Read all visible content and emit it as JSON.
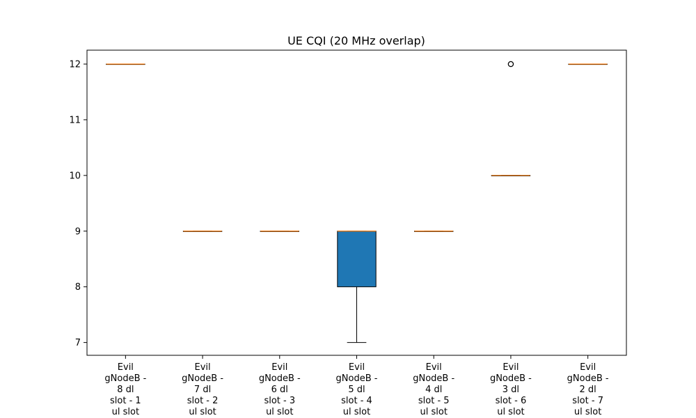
{
  "chart_data": {
    "type": "box",
    "title": "UE CQI (20 MHz overlap)",
    "xlabel": "",
    "ylabel": "",
    "ylim": [
      6.77,
      12.25
    ],
    "yticks": [
      7,
      8,
      9,
      10,
      11,
      12
    ],
    "grid": false,
    "box_color": "#1f77b4",
    "median_color": "#ff7f0e",
    "categories": [
      [
        "Evil",
        "gNodeB -",
        "8 dl",
        "slot - 1",
        "ul slot"
      ],
      [
        "Evil",
        "gNodeB -",
        "7 dl",
        "slot - 2",
        "ul slot"
      ],
      [
        "Evil",
        "gNodeB -",
        "6 dl",
        "slot - 3",
        "ul slot"
      ],
      [
        "Evil",
        "gNodeB -",
        "5 dl",
        "slot - 4",
        "ul slot"
      ],
      [
        "Evil",
        "gNodeB -",
        "4 dl",
        "slot - 5",
        "ul slot"
      ],
      [
        "Evil",
        "gNodeB -",
        "3 dl",
        "slot - 6",
        "ul slot"
      ],
      [
        "Evil",
        "gNodeB -",
        "2 dl",
        "slot - 7",
        "ul slot"
      ]
    ],
    "boxes": [
      {
        "whislo": 12,
        "q1": 12,
        "med": 12,
        "q3": 12,
        "whishi": 12,
        "fliers": []
      },
      {
        "whislo": 9,
        "q1": 9,
        "med": 9,
        "q3": 9,
        "whishi": 9,
        "fliers": []
      },
      {
        "whislo": 9,
        "q1": 9,
        "med": 9,
        "q3": 9,
        "whishi": 9,
        "fliers": []
      },
      {
        "whislo": 7,
        "q1": 8,
        "med": 9,
        "q3": 9,
        "whishi": 9,
        "fliers": []
      },
      {
        "whislo": 9,
        "q1": 9,
        "med": 9,
        "q3": 9,
        "whishi": 9,
        "fliers": []
      },
      {
        "whislo": 10,
        "q1": 10,
        "med": 10,
        "q3": 10,
        "whishi": 10,
        "fliers": [
          12
        ]
      },
      {
        "whislo": 12,
        "q1": 12,
        "med": 12,
        "q3": 12,
        "whishi": 12,
        "fliers": []
      }
    ]
  }
}
